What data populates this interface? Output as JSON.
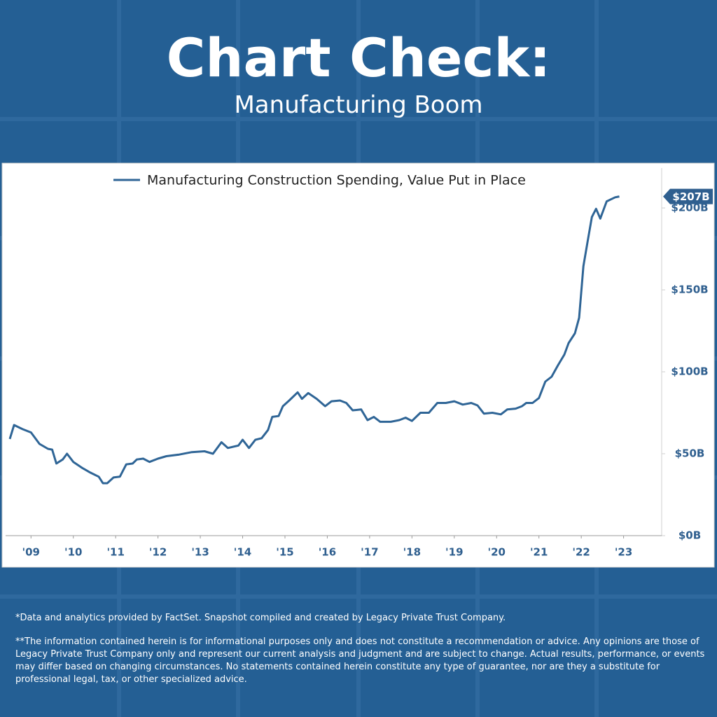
{
  "header": {
    "title": "Chart Check:",
    "subtitle": "Manufacturing Boom"
  },
  "chart_data": {
    "type": "line",
    "x": [
      2009.0,
      2009.1,
      2009.3,
      2009.5,
      2009.7,
      2009.9,
      2010.0,
      2010.1,
      2010.25,
      2010.35,
      2010.5,
      2010.7,
      2010.9,
      2011.1,
      2011.2,
      2011.3,
      2011.45,
      2011.6,
      2011.75,
      2011.9,
      2012.0,
      2012.15,
      2012.3,
      2012.5,
      2012.7,
      2013.0,
      2013.3,
      2013.6,
      2013.8,
      2014.0,
      2014.15,
      2014.4,
      2014.5,
      2014.65,
      2014.8,
      2014.95,
      2015.1,
      2015.2,
      2015.35,
      2015.45,
      2015.6,
      2015.8,
      2015.9,
      2016.05,
      2016.25,
      2016.45,
      2016.6,
      2016.8,
      2016.95,
      2017.1,
      2017.3,
      2017.45,
      2017.6,
      2017.75,
      2018.0,
      2018.2,
      2018.35,
      2018.5,
      2018.7,
      2018.9,
      2019.1,
      2019.3,
      2019.5,
      2019.7,
      2019.9,
      2020.05,
      2020.2,
      2020.4,
      2020.6,
      2020.75,
      2020.95,
      2021.1,
      2021.2,
      2021.35,
      2021.5,
      2021.65,
      2021.8,
      2021.95,
      2022.1,
      2022.2,
      2022.35,
      2022.45,
      2022.55,
      2022.65,
      2022.75,
      2022.85,
      2022.95,
      2023.1,
      2023.3,
      2023.4
    ],
    "series": [
      {
        "name": "Manufacturing Construction Spending, Value Put in Place",
        "color": "#2f6596",
        "values": [
          59,
          67.5,
          65,
          63,
          56,
          53,
          52.5,
          44,
          46.5,
          50,
          45,
          41.5,
          38.5,
          36,
          32,
          32,
          35.5,
          36,
          43.5,
          44,
          46.5,
          47,
          45,
          47,
          48.5,
          49.5,
          51,
          51.5,
          50,
          57,
          53.5,
          55,
          58.5,
          53.5,
          58.5,
          59.5,
          64.5,
          72.5,
          73,
          79,
          82.5,
          87.5,
          83.5,
          87,
          83.5,
          79,
          82,
          82.5,
          81,
          76.5,
          77,
          70.5,
          72.5,
          69.5,
          69.5,
          70.5,
          72,
          70,
          75,
          75,
          81,
          81,
          82,
          80,
          81,
          79.5,
          74.5,
          75,
          74,
          77,
          77.5,
          79,
          81,
          81,
          84,
          94,
          97,
          104,
          110.5,
          117.5,
          123.5,
          133,
          164.5,
          179.5,
          194.5,
          199.5,
          193.5,
          204,
          206.5,
          207
        ]
      }
    ],
    "last_value_label": {
      "value": 207,
      "label": "$207B"
    },
    "xlim": [
      2008.9,
      2024.4
    ],
    "xticks": [
      {
        "value": 2009.5,
        "label": "'09"
      },
      {
        "value": 2010.5,
        "label": "'10"
      },
      {
        "value": 2011.5,
        "label": "'11"
      },
      {
        "value": 2012.5,
        "label": "'12"
      },
      {
        "value": 2013.5,
        "label": "'13"
      },
      {
        "value": 2014.5,
        "label": "'14"
      },
      {
        "value": 2015.5,
        "label": "'15"
      },
      {
        "value": 2016.5,
        "label": "'16"
      },
      {
        "value": 2017.5,
        "label": "'17"
      },
      {
        "value": 2018.5,
        "label": "'18"
      },
      {
        "value": 2019.5,
        "label": "'19"
      },
      {
        "value": 2020.5,
        "label": "'20"
      },
      {
        "value": 2021.5,
        "label": "'21"
      },
      {
        "value": 2022.5,
        "label": "'22"
      },
      {
        "value": 2023.5,
        "label": "'23"
      }
    ],
    "ylim": [
      0,
      217
    ],
    "yticks": [
      {
        "value": 0,
        "label": "$0B"
      },
      {
        "value": 50,
        "label": "$50B"
      },
      {
        "value": 100,
        "label": "$100B"
      },
      {
        "value": 150,
        "label": "$150B"
      },
      {
        "value": 200,
        "label": "$200B"
      }
    ]
  },
  "footer": {
    "source": "*Data and analytics provided by FactSet. Snapshot compiled and created by Legacy Private Trust Company.",
    "disclaimer": "**The information contained herein is for informational purposes only and does not constitute a recommendation or advice. Any opinions are those of Legacy Private Trust Company only and represent our current analysis and judgment and are subject to change. Actual results, performance, or events may differ based on changing circumstances. No statements contained herein constitute any type of guarantee, nor are they a substitute for professional legal, tax, or other specialized advice."
  }
}
